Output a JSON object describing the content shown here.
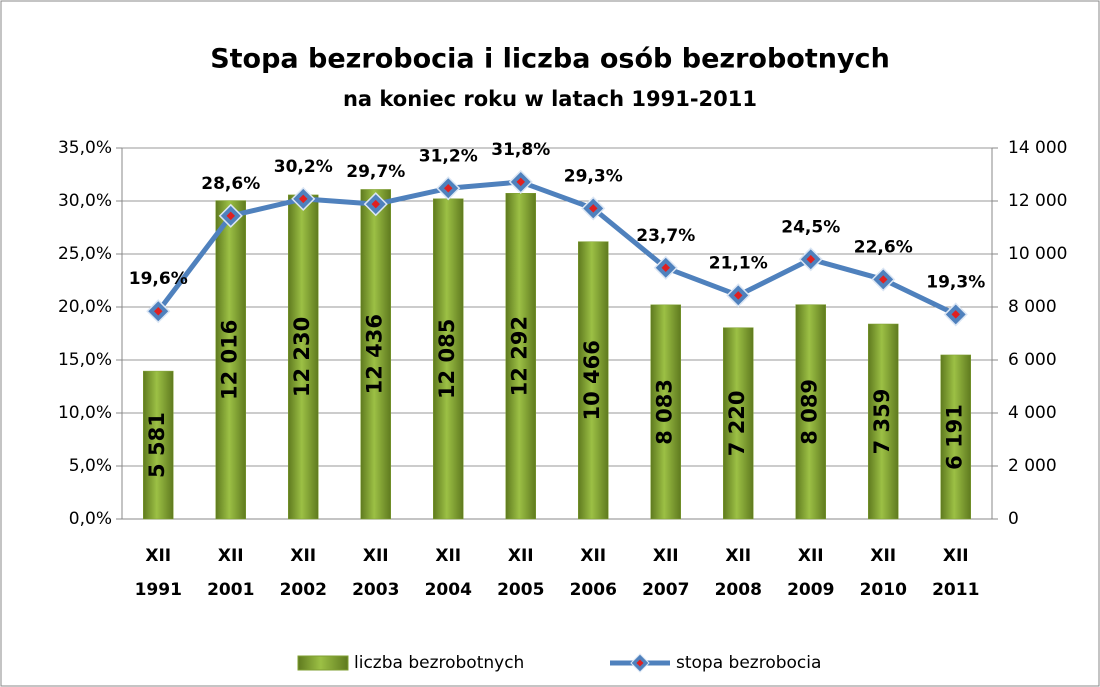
{
  "chart_data": {
    "type": "bar-line",
    "title": "Stopa bezrobocia i liczba osób bezrobotnych",
    "subtitle": "na koniec roku w latach 1991-2011",
    "categories": [
      [
        "XII",
        "1991"
      ],
      [
        "XII",
        "2001"
      ],
      [
        "XII",
        "2002"
      ],
      [
        "XII",
        "2003"
      ],
      [
        "XII",
        "2004"
      ],
      [
        "XII",
        "2005"
      ],
      [
        "XII",
        "2006"
      ],
      [
        "XII",
        "2007"
      ],
      [
        "XII",
        "2008"
      ],
      [
        "XII",
        "2009"
      ],
      [
        "XII",
        "2010"
      ],
      [
        "XII",
        "2011"
      ]
    ],
    "series": [
      {
        "name": "liczba bezrobotnych",
        "type": "bar",
        "axis": "y2",
        "color": "#7f9f32",
        "values": [
          5581,
          12016,
          12230,
          12436,
          12085,
          12292,
          10466,
          8083,
          7220,
          8089,
          7359,
          6191
        ],
        "value_labels": [
          "5 581",
          "12 016",
          "12 230",
          "12 436",
          "12 085",
          "12 292",
          "10 466",
          "8 083",
          "7 220",
          "8 089",
          "7 359",
          "6 191"
        ]
      },
      {
        "name": "stopa bezrobocia",
        "type": "line",
        "axis": "y",
        "color": "#4f81bd",
        "values": [
          19.6,
          28.6,
          30.2,
          29.7,
          31.2,
          31.8,
          29.3,
          23.7,
          21.1,
          24.5,
          22.6,
          19.3
        ],
        "value_labels": [
          "19,6%",
          "28,6%",
          "30,2%",
          "29,7%",
          "31,2%",
          "31,8%",
          "29,3%",
          "23,7%",
          "21,1%",
          "24,5%",
          "22,6%",
          "19,3%"
        ]
      }
    ],
    "ylim": [
      0,
      35
    ],
    "yticks": [
      {
        "value": 0,
        "label": "0,0%"
      },
      {
        "value": 5,
        "label": "5,0%"
      },
      {
        "value": 10,
        "label": "10,0%"
      },
      {
        "value": 15,
        "label": "15,0%"
      },
      {
        "value": 20,
        "label": "20,0%"
      },
      {
        "value": 25,
        "label": "25,0%"
      },
      {
        "value": 30,
        "label": "30,0%"
      },
      {
        "value": 35,
        "label": "35,0%"
      }
    ],
    "y2lim": [
      0,
      14000
    ],
    "y2ticks": [
      0,
      {
        "value": 2000,
        "label": "2 000"
      },
      {
        "value": 4000,
        "label": "4 000"
      },
      {
        "value": 6000,
        "label": "6 000"
      },
      {
        "value": 8000,
        "label": "8 000"
      },
      {
        "value": 10000,
        "label": "10 000"
      },
      {
        "value": 12000,
        "label": "12 000"
      },
      {
        "value": 14000,
        "label": "14 000"
      }
    ],
    "legend": "bottom"
  }
}
